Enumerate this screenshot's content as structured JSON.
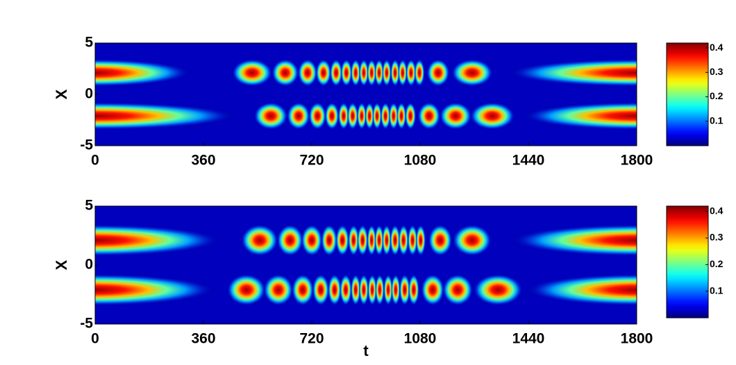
{
  "chart_data": [
    {
      "type": "heatmap",
      "ylabel": "X",
      "colormap": "jet",
      "xlim": [
        0,
        1800
      ],
      "ylim": [
        -5,
        5
      ],
      "xticks": [
        0,
        360,
        720,
        1080,
        1440,
        1800
      ],
      "yticks": [
        -5,
        0,
        5
      ],
      "clim": [
        0,
        0.42
      ],
      "cticks": [
        0.1,
        0.2,
        0.3,
        0.4
      ],
      "series": [
        {
          "y": 2.1,
          "bands": [
            [
              0,
              320
            ],
            [
              1370,
              1800
            ]
          ],
          "centers": [
            522,
            632,
            706,
            759,
            801,
            835,
            866,
            893,
            919,
            944,
            969,
            997,
            1022,
            1050,
            1078,
            1140,
            1253
          ]
        },
        {
          "y": -2.1,
          "bands": [
            [
              0,
              470
            ],
            [
              1420,
              1800
            ]
          ],
          "centers": [
            584,
            676,
            739,
            787,
            826,
            856,
            886,
            912,
            937,
            965,
            992,
            1018,
            1048,
            1110,
            1198,
            1320
          ]
        }
      ]
    },
    {
      "type": "heatmap",
      "ylabel": "X",
      "xlabel": "t",
      "colormap": "jet",
      "xlim": [
        0,
        1800
      ],
      "ylim": [
        -5,
        5
      ],
      "xticks": [
        0,
        360,
        720,
        1080,
        1440,
        1800
      ],
      "yticks": [
        -5,
        0,
        5
      ],
      "clim": [
        0,
        0.42
      ],
      "cticks": [
        0.1,
        0.2,
        0.3,
        0.4
      ],
      "series": [
        {
          "y": 2.1,
          "bands": [
            [
              0,
              420
            ],
            [
              1380,
              1800
            ]
          ],
          "centers": [
            547,
            648,
            720,
            778,
            822,
            859,
            889,
            919,
            944,
            969,
            997,
            1025,
            1055,
            1082,
            1147,
            1253
          ]
        },
        {
          "y": -2.1,
          "bands": [
            [
              0,
              400
            ],
            [
              1430,
              1800
            ]
          ],
          "centers": [
            503,
            609,
            690,
            750,
            796,
            833,
            866,
            893,
            921,
            946,
            974,
            999,
            1029,
            1059,
            1122,
            1205,
            1339
          ]
        }
      ]
    }
  ]
}
